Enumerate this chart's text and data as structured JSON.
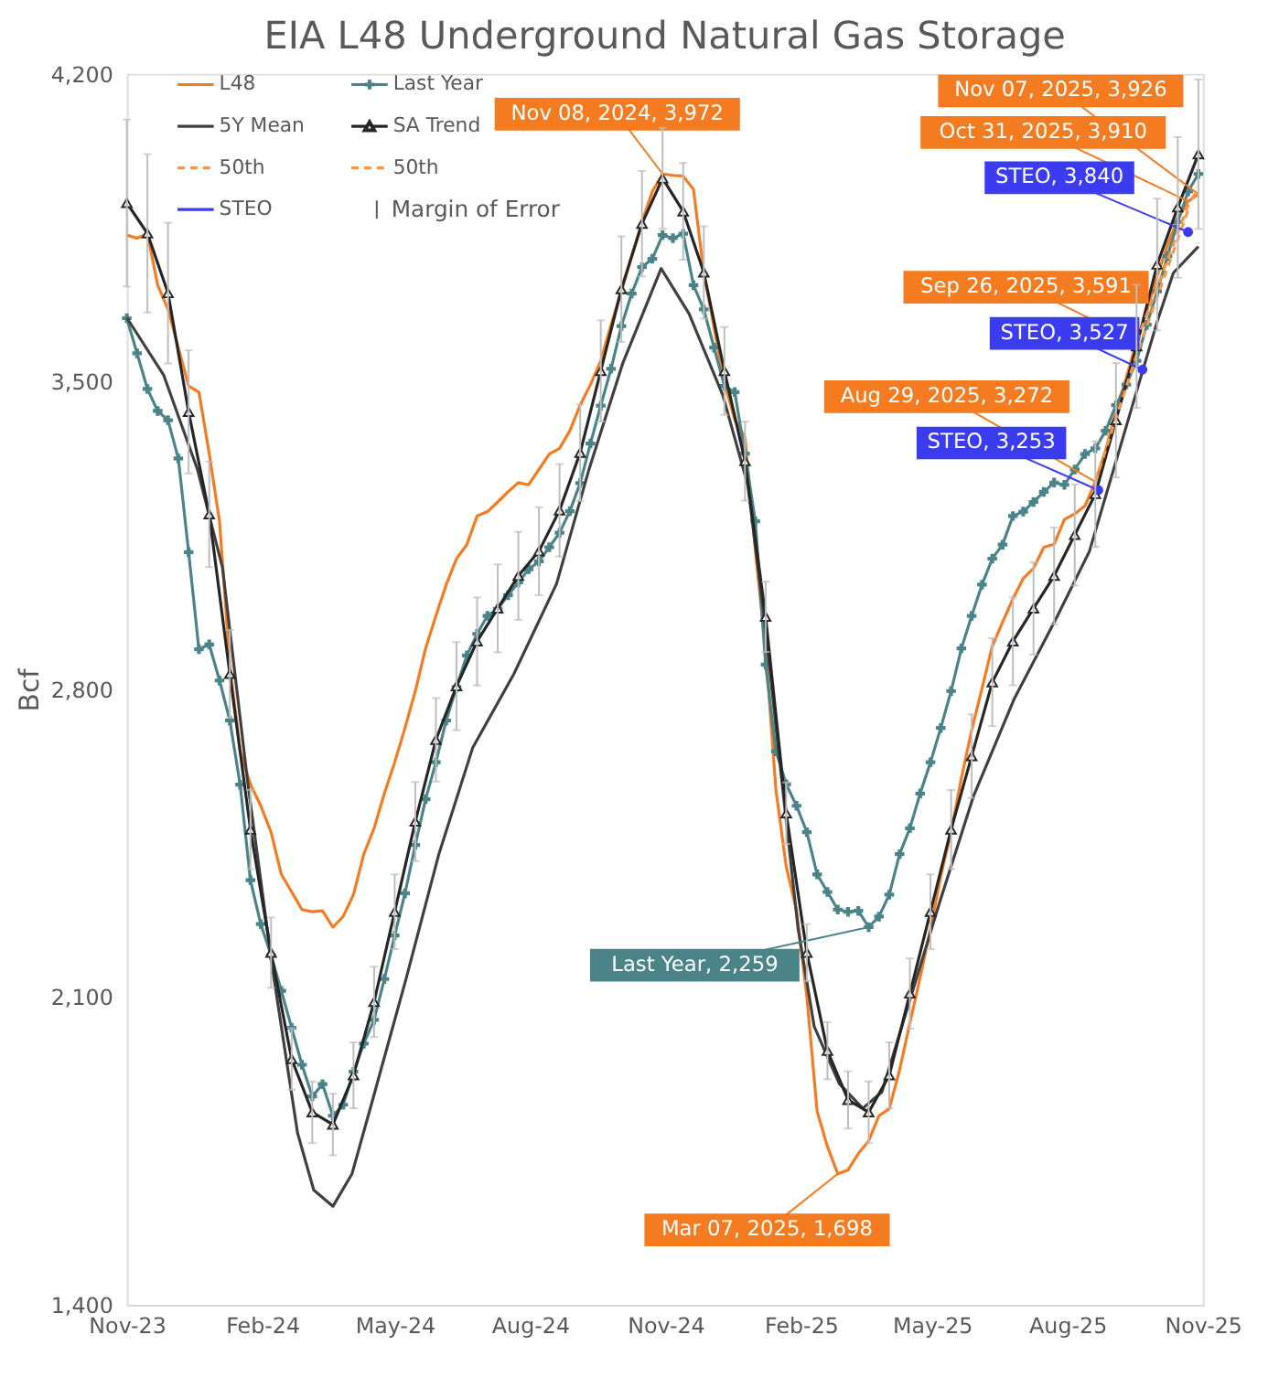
{
  "chart_data": {
    "type": "line",
    "title": "EIA L48 Underground Natural Gas Storage",
    "ylabel": "Bcf",
    "x": [
      "2023-11-10",
      "2023-11-17",
      "2023-11-24",
      "2023-12-01",
      "2023-12-08",
      "2023-12-15",
      "2023-12-22",
      "2023-12-29",
      "2024-01-05",
      "2024-01-12",
      "2024-01-19",
      "2024-01-26",
      "2024-02-02",
      "2024-02-09",
      "2024-02-16",
      "2024-02-23",
      "2024-03-01",
      "2024-03-08",
      "2024-03-15",
      "2024-03-22",
      "2024-03-29",
      "2024-04-05",
      "2024-04-12",
      "2024-04-19",
      "2024-04-26",
      "2024-05-03",
      "2024-05-10",
      "2024-05-17",
      "2024-05-24",
      "2024-05-31",
      "2024-06-07",
      "2024-06-14",
      "2024-06-21",
      "2024-06-28",
      "2024-07-05",
      "2024-07-12",
      "2024-07-19",
      "2024-07-26",
      "2024-08-02",
      "2024-08-09",
      "2024-08-16",
      "2024-08-23",
      "2024-08-30",
      "2024-09-06",
      "2024-09-13",
      "2024-09-20",
      "2024-09-27",
      "2024-10-04",
      "2024-10-11",
      "2024-10-18",
      "2024-10-25",
      "2024-11-01",
      "2024-11-08",
      "2024-11-15",
      "2024-11-22",
      "2024-11-29",
      "2024-12-06",
      "2024-12-13",
      "2024-12-20",
      "2024-12-27",
      "2025-01-03",
      "2025-01-10",
      "2025-01-17",
      "2025-01-24",
      "2025-01-31",
      "2025-02-07",
      "2025-02-14",
      "2025-02-21",
      "2025-02-28",
      "2025-03-07",
      "2025-03-14",
      "2025-03-21",
      "2025-03-28",
      "2025-04-04",
      "2025-04-11",
      "2025-04-18",
      "2025-04-25",
      "2025-05-02",
      "2025-05-09",
      "2025-05-16",
      "2025-05-23",
      "2025-05-30",
      "2025-06-06",
      "2025-06-13",
      "2025-06-20",
      "2025-06-27",
      "2025-07-04",
      "2025-07-11",
      "2025-07-18",
      "2025-07-25",
      "2025-08-01",
      "2025-08-08",
      "2025-08-15",
      "2025-08-22",
      "2025-08-29",
      "2025-09-05",
      "2025-09-12",
      "2025-09-19",
      "2025-09-26",
      "2025-10-03",
      "2025-10-10",
      "2025-10-17",
      "2025-10-24",
      "2025-10-31",
      "2025-11-07"
    ],
    "series": [
      {
        "name": "L48",
        "color": "#f47b20",
        "type": "line",
        "marker": "none",
        "line_style": "solid",
        "values": [
          3833,
          3826,
          3836,
          3719,
          3664,
          3577,
          3490,
          3476,
          3336,
          3182,
          2856,
          2659,
          2584,
          2535,
          2475,
          2379,
          2339,
          2299,
          2294,
          2296,
          2259,
          2283,
          2333,
          2425,
          2484,
          2563,
          2634,
          2712,
          2796,
          2893,
          2967,
          3038,
          3097,
          3129,
          3194,
          3204,
          3226,
          3249,
          3270,
          3265,
          3300,
          3335,
          3348,
          3388,
          3446,
          3493,
          3547,
          3629,
          3705,
          3785,
          3863,
          3932,
          3972,
          3969,
          3967,
          3937,
          3747,
          3622,
          3497,
          3413,
          3373,
          3115,
          2892,
          2571,
          2397,
          2297,
          2101,
          1840,
          1760,
          1698,
          1707,
          1744,
          1773,
          1830,
          1846,
          1934,
          2041,
          2145,
          2255,
          2375,
          2476,
          2598,
          2707,
          2802,
          2898,
          2953,
          3006,
          3052,
          3075,
          3123,
          3130,
          3186,
          3199,
          3217,
          3272,
          3343,
          3433,
          3508,
          3591,
          3660,
          3740,
          3810,
          3870,
          3910,
          3926
        ]
      },
      {
        "name": "Last Year",
        "color": "#4a8488",
        "type": "line",
        "marker": "cross",
        "line_style": "solid",
        "values": [
          3644,
          3564,
          3483,
          3433,
          3412,
          3325,
          3112,
          2891,
          2902,
          2820,
          2729,
          2583,
          2366,
          2266,
          2195,
          2114,
          2030,
          1946,
          1874,
          1902,
          1830,
          1855,
          1930,
          1994,
          2048,
          2141,
          2240,
          2336,
          2446,
          2550,
          2634,
          2729,
          2805,
          2877,
          2926,
          2967,
          2983,
          3014,
          3043,
          3073,
          3091,
          3123,
          3156,
          3205,
          3269,
          3359,
          3445,
          3529,
          3626,
          3700,
          3760,
          3779,
          3833,
          3826,
          3836,
          3719,
          3664,
          3577,
          3490,
          3476,
          3336,
          3182,
          2856,
          2659,
          2584,
          2535,
          2475,
          2379,
          2339,
          2299,
          2294,
          2296,
          2259,
          2283,
          2333,
          2425,
          2484,
          2563,
          2634,
          2712,
          2796,
          2893,
          2967,
          3038,
          3097,
          3129,
          3194,
          3204,
          3226,
          3249,
          3270,
          3265,
          3300,
          3335,
          3348,
          3388,
          3446,
          3493,
          3547,
          3629,
          3705,
          3785,
          3863,
          3932,
          3972
        ]
      },
      {
        "name": "5Y Mean",
        "color": "#404040",
        "type": "line",
        "marker": "none",
        "line_style": "solid",
        "x": [
          "2023-11-10",
          "2023-12-05",
          "2023-12-28",
          "2024-01-14",
          "2024-01-31",
          "2024-02-17",
          "2024-03-05",
          "2024-03-16",
          "2024-03-29",
          "2024-04-11",
          "2024-04-25",
          "2024-05-18",
          "2024-06-09",
          "2024-07-02",
          "2024-07-30",
          "2024-08-28",
          "2024-09-19",
          "2024-10-12",
          "2024-11-07",
          "2024-11-26",
          "2024-12-19",
          "2025-01-05",
          "2025-01-16",
          "2025-01-28",
          "2025-02-08",
          "2025-02-19",
          "2025-03-08",
          "2025-03-24",
          "2025-04-06",
          "2025-04-23",
          "2025-05-15",
          "2025-06-07",
          "2025-07-05",
          "2025-08-03",
          "2025-08-25",
          "2025-09-17",
          "2025-10-10",
          "2025-10-21",
          "2025-11-07"
        ],
        "values": [
          3645,
          3515,
          3300,
          3077,
          2592,
          2164,
          1791,
          1661,
          1624,
          1698,
          1866,
          2145,
          2425,
          2667,
          2835,
          3040,
          3300,
          3542,
          3757,
          3654,
          3468,
          3263,
          2965,
          2592,
          2257,
          2033,
          1903,
          1847,
          1884,
          2071,
          2313,
          2555,
          2779,
          2965,
          3114,
          3375,
          3636,
          3747,
          3807
        ]
      },
      {
        "name": "SA Trend",
        "color": "#262626",
        "type": "line",
        "marker": "triangle",
        "line_style": "solid",
        "x": [
          "2023-11-10",
          "2023-11-24",
          "2023-12-08",
          "2023-12-22",
          "2024-01-05",
          "2024-01-19",
          "2024-02-02",
          "2024-02-16",
          "2024-03-01",
          "2024-03-15",
          "2024-03-29",
          "2024-04-12",
          "2024-04-26",
          "2024-05-10",
          "2024-05-24",
          "2024-06-07",
          "2024-06-21",
          "2024-07-05",
          "2024-07-19",
          "2024-08-02",
          "2024-08-16",
          "2024-08-30",
          "2024-09-13",
          "2024-09-27",
          "2024-10-11",
          "2024-10-25",
          "2024-11-08",
          "2024-11-22",
          "2024-12-06",
          "2024-12-20",
          "2025-01-03",
          "2025-01-17",
          "2025-01-31",
          "2025-02-14",
          "2025-02-28",
          "2025-03-14",
          "2025-03-28",
          "2025-04-11",
          "2025-04-25",
          "2025-05-09",
          "2025-05-23",
          "2025-06-06",
          "2025-06-20",
          "2025-07-04",
          "2025-07-18",
          "2025-08-01",
          "2025-08-15",
          "2025-08-29",
          "2025-09-12",
          "2025-09-26",
          "2025-10-10",
          "2025-10-24",
          "2025-11-07"
        ],
        "values": [
          3906,
          3837,
          3701,
          3431,
          3198,
          2835,
          2481,
          2201,
          1959,
          1838,
          1810,
          1922,
          2089,
          2294,
          2499,
          2685,
          2807,
          2909,
          2984,
          3058,
          3114,
          3207,
          3338,
          3524,
          3710,
          3859,
          3962,
          3887,
          3748,
          3524,
          3319,
          2965,
          2518,
          2201,
          1978,
          1866,
          1838,
          1922,
          2108,
          2294,
          2481,
          2648,
          2816,
          2909,
          2984,
          3058,
          3151,
          3244,
          3412,
          3580,
          3766,
          3896,
          4017
        ],
        "errors": [
          190,
          180,
          160,
          140,
          120,
          100,
          90,
          80,
          70,
          70,
          70,
          75,
          80,
          85,
          90,
          95,
          100,
          100,
          100,
          100,
          100,
          105,
          110,
          115,
          120,
          120,
          115,
          110,
          105,
          100,
          90,
          80,
          70,
          65,
          65,
          65,
          70,
          75,
          80,
          85,
          90,
          95,
          100,
          100,
          105,
          110,
          115,
          120,
          130,
          140,
          150,
          160,
          170
        ]
      },
      {
        "name": "50th",
        "color": "#f79646",
        "type": "line",
        "marker": "none",
        "line_style": "dashed",
        "x": [
          "2025-08-29",
          "2025-09-26",
          "2025-10-31"
        ],
        "values": [
          3272,
          3560,
          3890
        ]
      },
      {
        "name": "50th",
        "color": "#f79646",
        "type": "line",
        "marker": "none",
        "line_style": "dashed",
        "x": [
          "2025-09-26",
          "2025-10-31",
          "2025-11-07"
        ],
        "values": [
          3591,
          3900,
          3940
        ]
      },
      {
        "name": "STEO",
        "color": "#3b3bf0",
        "type": "scatter",
        "marker": "circle",
        "x": [
          "2025-08-31",
          "2025-09-30",
          "2025-10-31"
        ],
        "values": [
          3253,
          3527,
          3840
        ]
      }
    ],
    "xlim": [
      "2023-11-10",
      "2025-11-10"
    ],
    "xticks": [
      {
        "value": "2023-11-10",
        "label": "Nov-23"
      },
      {
        "value": "2024-02-10",
        "label": "Feb-24"
      },
      {
        "value": "2024-05-10",
        "label": "May-24"
      },
      {
        "value": "2024-08-10",
        "label": "Aug-24"
      },
      {
        "value": "2024-11-10",
        "label": "Nov-24"
      },
      {
        "value": "2025-02-10",
        "label": "Feb-25"
      },
      {
        "value": "2025-05-10",
        "label": "May-25"
      },
      {
        "value": "2025-08-10",
        "label": "Aug-25"
      },
      {
        "value": "2025-11-10",
        "label": "Nov-25"
      }
    ],
    "ylim": [
      1400,
      4200
    ],
    "yticks": [
      {
        "value": 1400,
        "label": "1,400"
      },
      {
        "value": 2100,
        "label": "2,100"
      },
      {
        "value": 2800,
        "label": "2,800"
      },
      {
        "value": 3500,
        "label": "3,500"
      },
      {
        "value": 4200,
        "label": "4,200"
      }
    ],
    "legend": "top left",
    "annotations": [
      {
        "text": "Nov 08, 2024, 3,972",
        "x": "2024-11-08",
        "y": 3972
      },
      {
        "text": "Nov 07, 2025, 3,926",
        "x": "2025-11-07",
        "y": 3926
      },
      {
        "text": "Oct 31, 2025, 3,910",
        "x": "2025-10-31",
        "y": 3910
      },
      {
        "text": "STEO, 3,840",
        "x": "2025-10-31",
        "y": 3840
      },
      {
        "text": "Sep 26, 2025, 3,591",
        "x": "2025-09-26",
        "y": 3591
      },
      {
        "text": "STEO, 3,527",
        "x": "2025-09-30",
        "y": 3527
      },
      {
        "text": "Aug 29, 2025, 3,272",
        "x": "2025-08-29",
        "y": 3272
      },
      {
        "text": "STEO, 3,253",
        "x": "2025-08-31",
        "y": 3253
      },
      {
        "text": "Last Year, 2,259",
        "x": "2025-03-28",
        "y": 2259
      },
      {
        "text": "Mar 07, 2025, 1,698",
        "x": "2025-03-07",
        "y": 1698
      },
      "Margin of Error"
    ]
  }
}
